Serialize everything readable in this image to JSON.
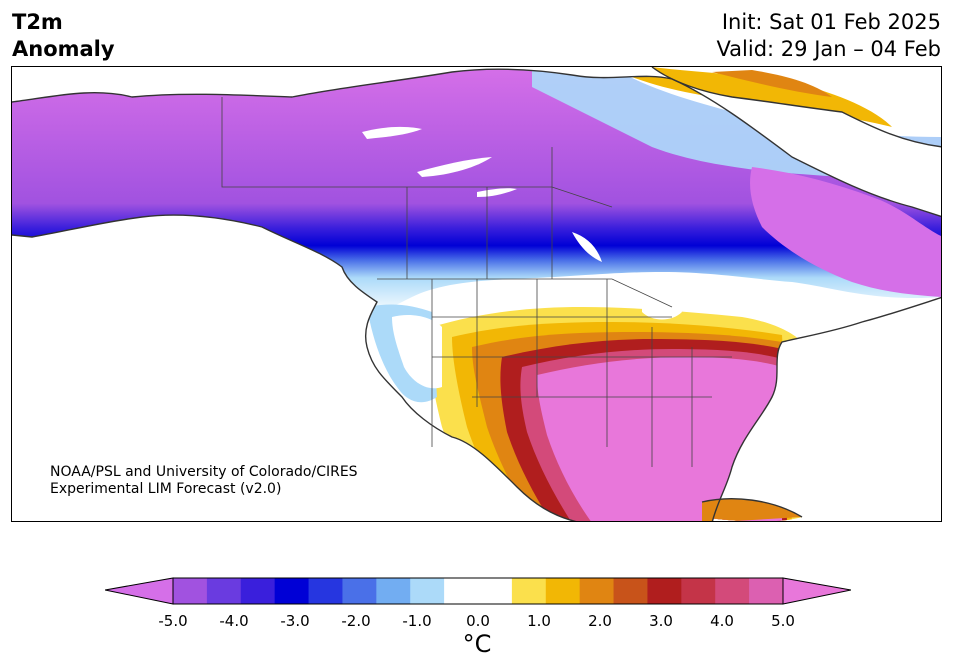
{
  "title": {
    "line1": "T2m",
    "line2": "Anomaly"
  },
  "init_label": "Init: Sat 01 Feb 2025",
  "valid_label": "Valid: 29 Jan – 04 Feb",
  "credit": {
    "line1": "NOAA/PSL and University of Colorado/CIRES",
    "line2": "Experimental LIM Forecast (v2.0)"
  },
  "colorbar": {
    "unit": "°C",
    "ticks": [
      "-5.0",
      "-4.0",
      "-3.0",
      "-2.0",
      "-1.0",
      "0.0",
      "1.0",
      "2.0",
      "3.0",
      "4.0",
      "5.0"
    ],
    "colors": [
      "#d56fe8",
      "#a152e0",
      "#6a3be0",
      "#3a1fdc",
      "#0000d6",
      "#2636e0",
      "#4a70e8",
      "#72adf2",
      "#acdaf9",
      "#ffffff",
      "#ffffff",
      "#fbe04c",
      "#f2b705",
      "#e08512",
      "#c8531a",
      "#b01e1e",
      "#c43448",
      "#d34a7a",
      "#dc60b1",
      "#e877da"
    ]
  },
  "colors": {
    "strong_cold": "#d56fe8",
    "cold": "#0000d6",
    "cool": "#acdaf9",
    "warm": "#f2b705",
    "hot": "#b01e1e",
    "strong_hot": "#e877da"
  }
}
